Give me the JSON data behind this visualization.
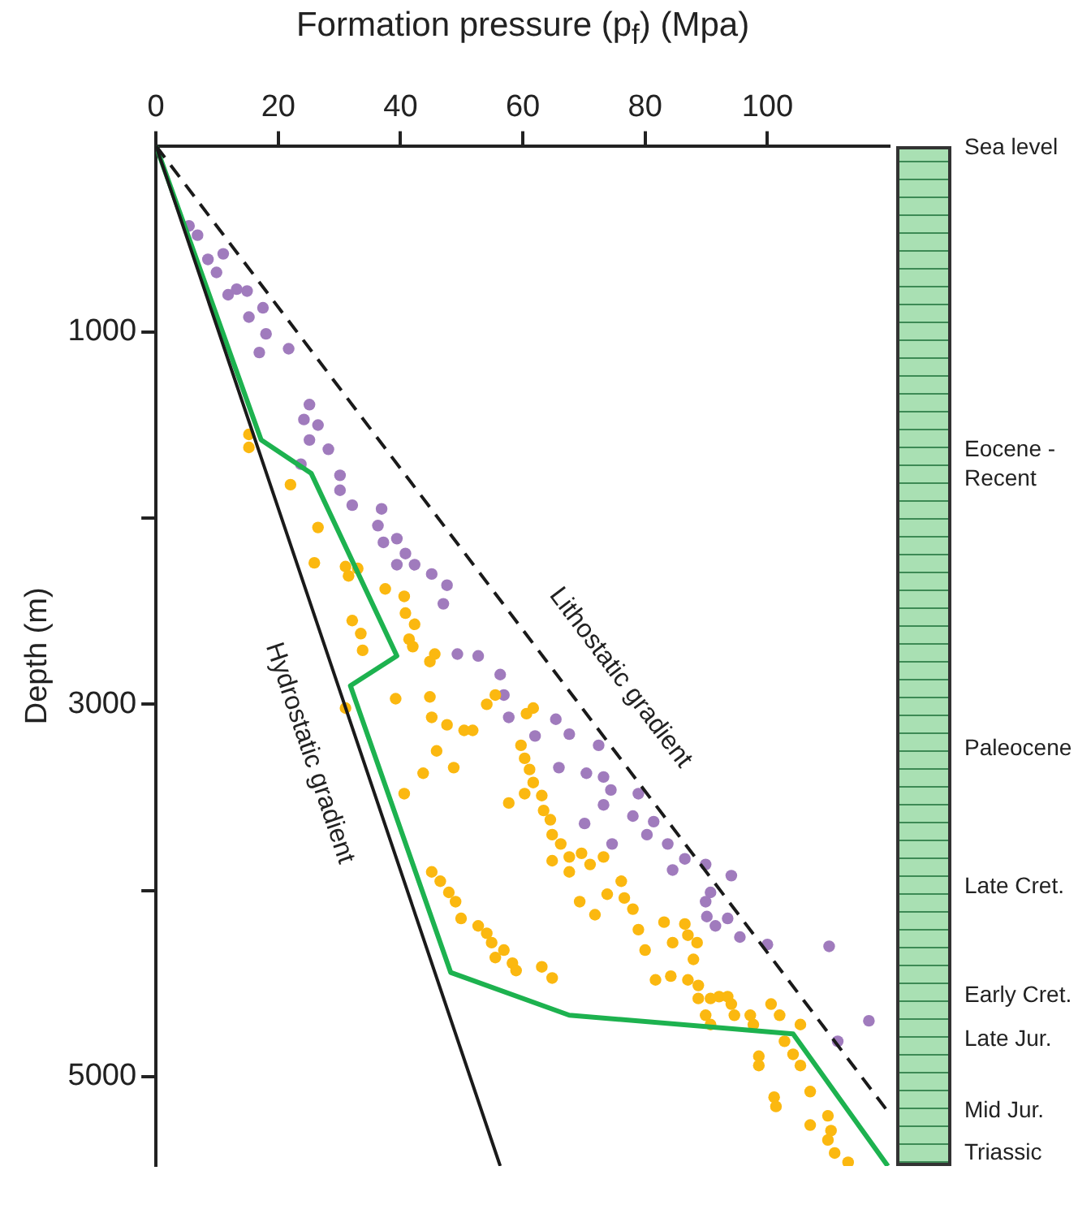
{
  "chart_data": {
    "type": "scatter",
    "xlabel": "Formation pressure (p$_{f}$) (Mpa)",
    "ylabel": "Depth (m)",
    "xlim": [
      0,
      120
    ],
    "xticks": [
      0,
      20,
      40,
      60,
      80,
      100
    ],
    "ylim": [
      5480,
      0
    ],
    "yticks": [
      {
        "value": 2000,
        "label": null
      },
      1000,
      3000,
      {
        "value": 4000,
        "label": null
      },
      5000
    ],
    "marker": "circle",
    "series": [
      {
        "type": "scatter",
        "color": "#a07bbd",
        "x": [
          5.4,
          6.8,
          8.5,
          11.0,
          9.9,
          11.8,
          13.2,
          14.9,
          15.2,
          17.5,
          18.0,
          16.9,
          21.7,
          25.1,
          24.2,
          26.5,
          25.1,
          28.2,
          23.7,
          30.1,
          30.1,
          32.1,
          36.9,
          36.3,
          37.2,
          39.4,
          40.8,
          39.4,
          45.1,
          47.6,
          47.0,
          42.3,
          49.3,
          52.7,
          56.3,
          56.9,
          57.7,
          65.4,
          67.6,
          62.0,
          72.4,
          65.9,
          70.4,
          73.2,
          74.4,
          78.9,
          73.2,
          70.1,
          78.0,
          81.4,
          80.3,
          83.7,
          74.6,
          86.5,
          84.5,
          89.9,
          94.1,
          90.7,
          89.9,
          90.1,
          93.5,
          91.5,
          95.5,
          100.0,
          110.1,
          116.6,
          111.5
        ],
        "values": [
          430,
          480,
          610,
          580,
          680,
          800,
          770,
          780,
          920,
          870,
          1010,
          1110,
          1090,
          1390,
          1470,
          1500,
          1580,
          1630,
          1710,
          1770,
          1850,
          1930,
          1950,
          2040,
          2130,
          2110,
          2190,
          2250,
          2300,
          2360,
          2460,
          2250,
          2730,
          2740,
          2840,
          2950,
          3070,
          3080,
          3160,
          3170,
          3220,
          3340,
          3370,
          3390,
          3460,
          3480,
          3540,
          3640,
          3600,
          3630,
          3700,
          3750,
          3750,
          3830,
          3890,
          3860,
          3920,
          4010,
          4060,
          4140,
          4150,
          4190,
          4250,
          4290,
          4300,
          4700,
          4810
        ]
      },
      {
        "type": "scatter",
        "color": "#fbb810",
        "x": [
          15.2,
          15.2,
          22.0,
          26.5,
          25.9,
          31.0,
          33.0,
          31.5,
          37.5,
          40.6,
          40.8,
          42.3,
          32.1,
          33.5,
          33.8,
          41.4,
          42.0,
          44.8,
          45.6,
          39.2,
          31.0,
          44.8,
          45.1,
          47.6,
          50.4,
          51.8,
          45.9,
          43.7,
          48.7,
          40.6,
          54.1,
          55.5,
          60.6,
          61.7,
          59.7,
          60.3,
          61.1,
          61.7,
          60.3,
          57.7,
          63.1,
          63.4,
          64.5,
          64.8,
          66.2,
          67.6,
          64.8,
          67.6,
          69.6,
          71.0,
          73.2,
          45.1,
          46.5,
          47.9,
          49.0,
          49.9,
          52.7,
          54.1,
          54.9,
          56.9,
          55.5,
          58.3,
          58.9,
          63.1,
          64.8,
          69.3,
          71.8,
          76.1,
          76.6,
          78.0,
          73.8,
          78.9,
          80.0,
          83.1,
          84.5,
          86.5,
          87.0,
          88.5,
          87.9,
          81.7,
          84.2,
          87.0,
          88.7,
          88.7,
          90.7,
          92.1,
          93.5,
          94.1,
          89.9,
          90.7,
          94.6,
          97.2,
          97.7,
          100.6,
          102.0,
          105.4,
          102.8,
          104.2,
          105.4,
          98.6,
          98.6,
          107.0,
          101.1,
          101.4,
          107.0,
          109.9,
          110.4,
          109.9,
          111.0,
          113.2
        ],
        "values": [
          1550,
          1620,
          1820,
          2050,
          2240,
          2260,
          2270,
          2310,
          2380,
          2420,
          2510,
          2570,
          2550,
          2620,
          2710,
          2650,
          2690,
          2770,
          2730,
          2970,
          3020,
          2960,
          3070,
          3110,
          3140,
          3140,
          3250,
          3370,
          3340,
          3480,
          3000,
          2950,
          3050,
          3020,
          3220,
          3290,
          3350,
          3420,
          3480,
          3530,
          3490,
          3570,
          3620,
          3700,
          3750,
          3820,
          3840,
          3900,
          3800,
          3860,
          3820,
          3900,
          3950,
          4010,
          4060,
          4150,
          4190,
          4230,
          4280,
          4320,
          4360,
          4390,
          4430,
          4410,
          4470,
          4060,
          4130,
          3950,
          4040,
          4100,
          4020,
          4210,
          4320,
          4170,
          4280,
          4180,
          4240,
          4280,
          4370,
          4480,
          4460,
          4480,
          4510,
          4580,
          4580,
          4570,
          4570,
          4610,
          4670,
          4720,
          4670,
          4670,
          4720,
          4610,
          4670,
          4720,
          4810,
          4880,
          4940,
          4890,
          4940,
          5080,
          5110,
          5160,
          5260,
          5210,
          5290,
          5340,
          5410,
          5460
        ]
      },
      {
        "type": "line",
        "color": "#1db24f",
        "marker": "none",
        "x": [
          0,
          17.2,
          25.4,
          39.4,
          31.8,
          48.2,
          67.6,
          104.2,
          119.7
        ],
        "values": [
          0,
          1580,
          1760,
          2740,
          2900,
          4440,
          4670,
          4770,
          5480
        ]
      },
      {
        "type": "line",
        "name": "Hydrostatic gradient",
        "color": "#1a1a1a",
        "marker": "none",
        "x": [
          0,
          56.3
        ],
        "values": [
          0,
          5480
        ]
      },
      {
        "type": "line",
        "name": "Lithostatic gradient",
        "color": "#1a1a1a",
        "marker": "none",
        "line_style": "dashed",
        "x": [
          0,
          120
        ],
        "values": [
          0,
          5200
        ]
      }
    ],
    "annotations": [
      "Sea level",
      "Eocene - Recent",
      "Paleocene",
      "Late Cret.",
      "Early Cret.",
      "Late Jur.",
      "Mid Jur.",
      "Triassic"
    ]
  }
}
